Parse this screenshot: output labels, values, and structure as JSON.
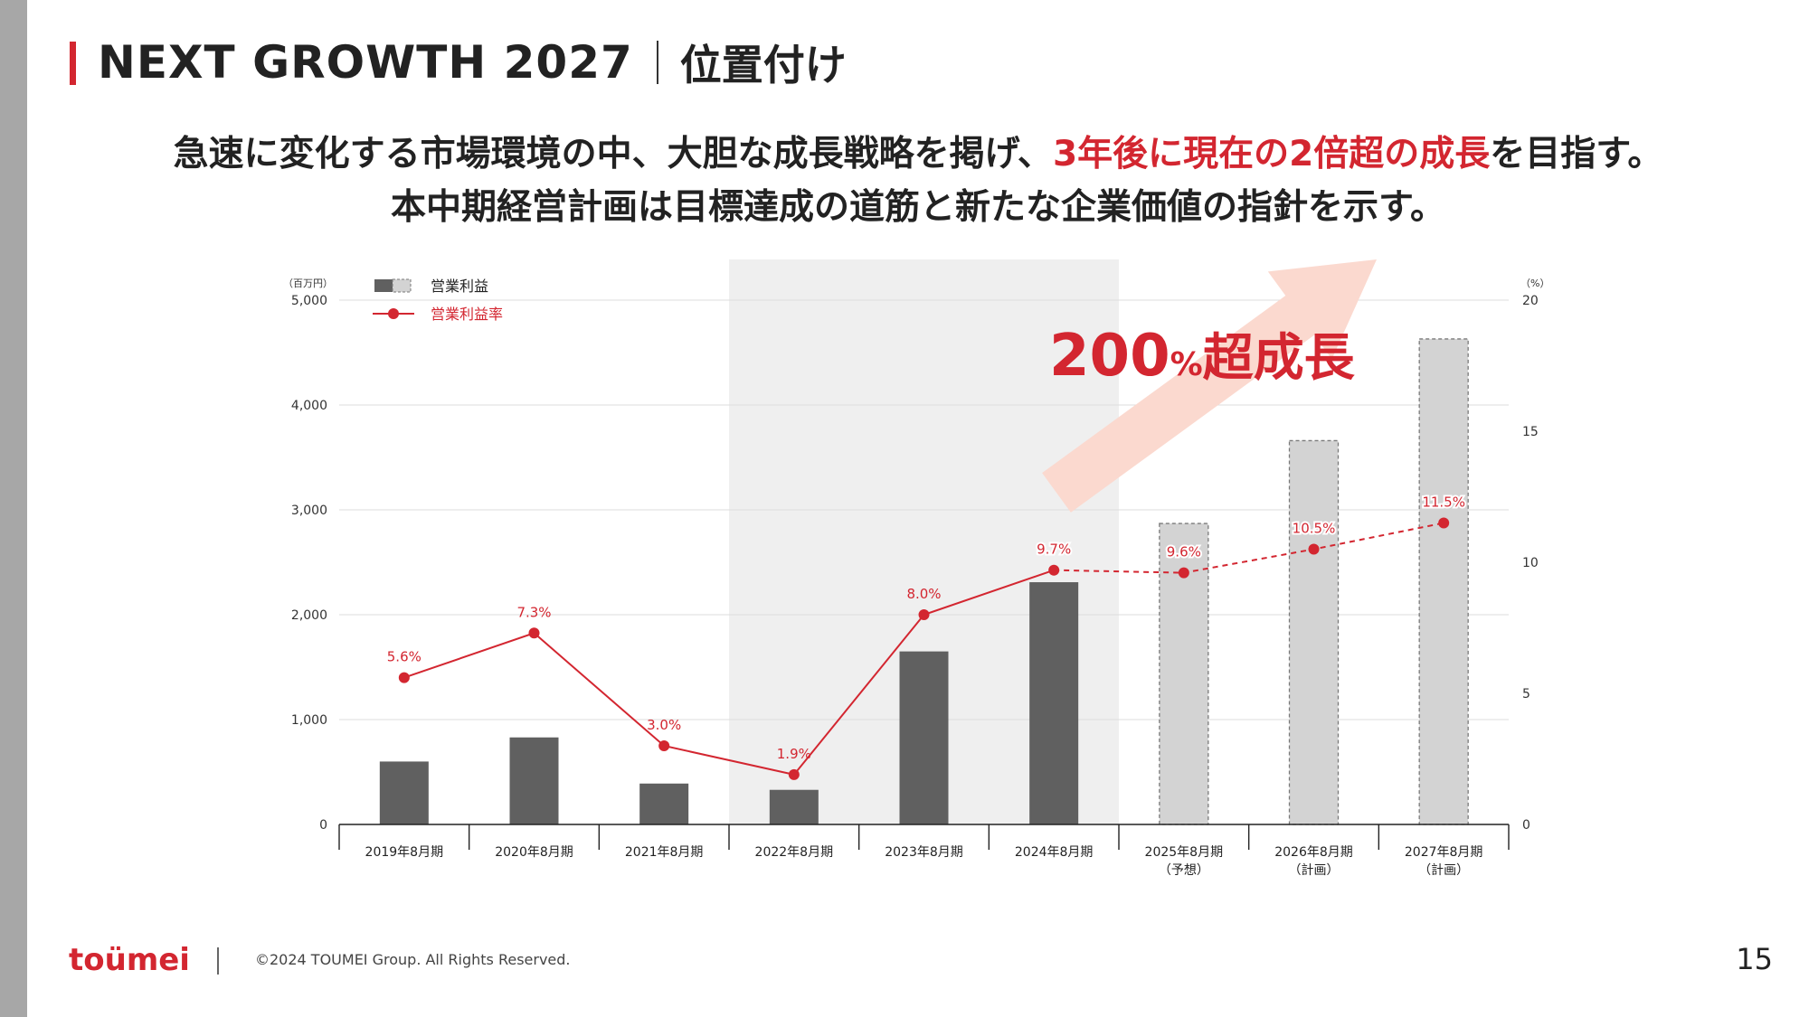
{
  "title": {
    "en": "NEXT GROWTH 2027",
    "ja": "位置付け"
  },
  "lead": {
    "line1_a": "急速に変化する市場環境の中、大胆な成長戦略を掲げ、",
    "line1_red": "3年後に現在の2倍超の成長",
    "line1_b": "を目指す。",
    "line2": "本中期経営計画は目標達成の道筋と新たな企業価値の指針を示す。"
  },
  "colors": {
    "accent": "#d32630",
    "bar_actual": "#606060",
    "bar_plan": "#d3d3d3",
    "highlight_bg": "#efefef",
    "arrow": "#fbd9cf"
  },
  "chart_data": {
    "type": "bar",
    "categories": [
      [
        "2019年8月期"
      ],
      [
        "2020年8月期"
      ],
      [
        "2021年8月期"
      ],
      [
        "2022年8月期"
      ],
      [
        "2023年8月期"
      ],
      [
        "2024年8月期"
      ],
      [
        "2025年8月期",
        "（予想）"
      ],
      [
        "2026年8月期",
        "（計画）"
      ],
      [
        "2027年8月期",
        "（計画）"
      ]
    ],
    "series": [
      {
        "name": "営業利益",
        "axis": "left",
        "values": [
          600,
          830,
          390,
          330,
          1650,
          2310,
          2870,
          3660,
          4630
        ],
        "planned_from_index": 6
      },
      {
        "name": "営業利益率",
        "axis": "right",
        "type": "line",
        "values": [
          5.6,
          7.3,
          3.0,
          1.9,
          8.0,
          9.7,
          9.6,
          10.5,
          11.5
        ],
        "labels": [
          "5.6%",
          "7.3%",
          "3.0%",
          "1.9%",
          "8.0%",
          "9.7%",
          "9.6%",
          "10.5%",
          "11.5%"
        ],
        "dashed_from_index": 5
      }
    ],
    "y_left": {
      "unit_label": "（百万円）",
      "min": 0,
      "max": 5000,
      "ticks": [
        0,
        1000,
        2000,
        3000,
        4000,
        5000
      ],
      "tick_labels": [
        "0",
        "1,000",
        "2,000",
        "3,000",
        "4,000",
        "5,000"
      ]
    },
    "y_right": {
      "unit_label": "（%）",
      "min": 0,
      "max": 20,
      "ticks": [
        0,
        5,
        10,
        15,
        20
      ],
      "tick_labels": [
        "0",
        "5",
        "10",
        "15",
        "20"
      ]
    },
    "legend": [
      {
        "label": "営業利益",
        "kind": "bar"
      },
      {
        "label": "営業利益率",
        "kind": "line"
      }
    ],
    "highlight_band": {
      "from_index": 3,
      "to_index": 5
    },
    "annotation": {
      "number": "200",
      "unit": "%",
      "text": "超成長"
    },
    "grid": true
  },
  "footer": {
    "logo": "toümei",
    "copyright": "©2024 TOUMEI Group. All Rights Reserved.",
    "page": "15"
  }
}
